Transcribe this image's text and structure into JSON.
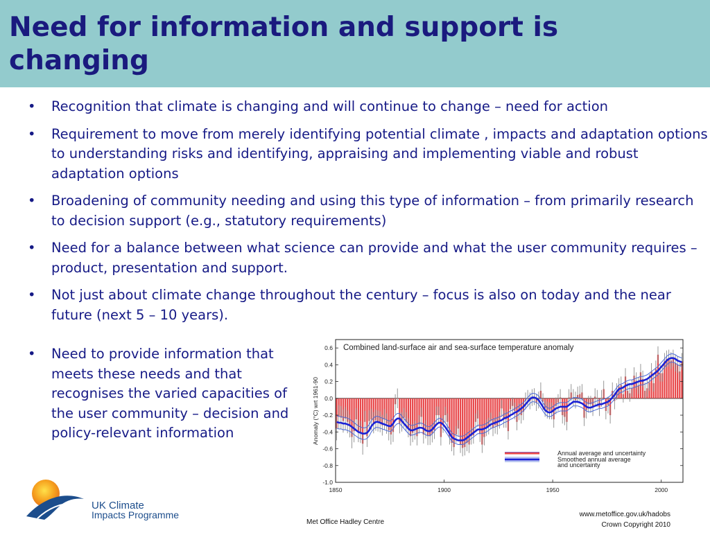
{
  "header": {
    "title": "Need for information and support is changing",
    "background": "#93cbcd",
    "title_color": "#1a1a7e"
  },
  "bullets": [
    "Recognition that climate is changing and will continue to change – need for action",
    "Requirement to move from merely identifying potential climate , impacts and adaptation options to understanding risks and identifying, appraising and implementing viable and robust adaptation options",
    "Broadening of community needing and using this type of information – from primarily research to decision support (e.g., statutory requirements)",
    "Need for a balance between what science can provide and what the user community requires – product, presentation and support.",
    "Not just about climate change throughout the century – focus is also on today and the near future (next 5 – 10 years)."
  ],
  "bullet_left": "Need to provide information that meets these needs and that recognises the varied capacities of the user community – decision and policy-relevant information",
  "bullet_char": "•",
  "logo": {
    "line1": "UK Climate",
    "line2": "Impacts Programme"
  },
  "footer": {
    "credit": "Met Office Hadley Centre",
    "url": "www.metoffice.gov.uk/hadobs",
    "copyright": "Crown Copyright 2010"
  },
  "chart_data": {
    "type": "bar",
    "title": "Combined land-surface air and sea-surface temperature anomaly",
    "ylabel": "Anomaly (°C) wrt 1961-90",
    "xlabel": "",
    "xlim": [
      1850,
      2010
    ],
    "ylim": [
      -1.0,
      0.7
    ],
    "xticks": [
      1850,
      1900,
      1950,
      2000
    ],
    "yticks": [
      -1.0,
      -0.8,
      -0.6,
      -0.4,
      -0.2,
      0.0,
      0.2,
      0.4,
      0.6
    ],
    "legend": [
      "Annual average and uncertainty",
      "Smoothed annual average and uncertainty"
    ],
    "legend_position": "lower-right",
    "colors": {
      "bar": "#e8474a",
      "smoothed": "#1a22d6",
      "uncertainty": "#8a8a8a",
      "smooth_band": "#4a6ad8"
    },
    "years": [
      1850,
      1851,
      1852,
      1853,
      1854,
      1855,
      1856,
      1857,
      1858,
      1859,
      1860,
      1861,
      1862,
      1863,
      1864,
      1865,
      1866,
      1867,
      1868,
      1869,
      1870,
      1871,
      1872,
      1873,
      1874,
      1875,
      1876,
      1877,
      1878,
      1879,
      1880,
      1881,
      1882,
      1883,
      1884,
      1885,
      1886,
      1887,
      1888,
      1889,
      1890,
      1891,
      1892,
      1893,
      1894,
      1895,
      1896,
      1897,
      1898,
      1899,
      1900,
      1901,
      1902,
      1903,
      1904,
      1905,
      1906,
      1907,
      1908,
      1909,
      1910,
      1911,
      1912,
      1913,
      1914,
      1915,
      1916,
      1917,
      1918,
      1919,
      1920,
      1921,
      1922,
      1923,
      1924,
      1925,
      1926,
      1927,
      1928,
      1929,
      1930,
      1931,
      1932,
      1933,
      1934,
      1935,
      1936,
      1937,
      1938,
      1939,
      1940,
      1941,
      1942,
      1943,
      1944,
      1945,
      1946,
      1947,
      1948,
      1949,
      1950,
      1951,
      1952,
      1953,
      1954,
      1955,
      1956,
      1957,
      1958,
      1959,
      1960,
      1961,
      1962,
      1963,
      1964,
      1965,
      1966,
      1967,
      1968,
      1969,
      1970,
      1971,
      1972,
      1973,
      1974,
      1975,
      1976,
      1977,
      1978,
      1979,
      1980,
      1981,
      1982,
      1983,
      1984,
      1985,
      1986,
      1987,
      1988,
      1989,
      1990,
      1991,
      1992,
      1993,
      1994,
      1995,
      1996,
      1997,
      1998,
      1999,
      2000,
      2001,
      2002,
      2003,
      2004,
      2005,
      2006,
      2007,
      2008,
      2009
    ],
    "annual": [
      -0.36,
      -0.22,
      -0.23,
      -0.27,
      -0.24,
      -0.28,
      -0.33,
      -0.46,
      -0.39,
      -0.25,
      -0.39,
      -0.4,
      -0.54,
      -0.28,
      -0.45,
      -0.27,
      -0.25,
      -0.29,
      -0.26,
      -0.27,
      -0.28,
      -0.32,
      -0.25,
      -0.3,
      -0.38,
      -0.43,
      -0.4,
      -0.07,
      0.0,
      -0.3,
      -0.28,
      -0.23,
      -0.28,
      -0.35,
      -0.45,
      -0.41,
      -0.38,
      -0.45,
      -0.31,
      -0.22,
      -0.43,
      -0.37,
      -0.45,
      -0.45,
      -0.42,
      -0.38,
      -0.2,
      -0.2,
      -0.46,
      -0.31,
      -0.2,
      -0.28,
      -0.45,
      -0.53,
      -0.58,
      -0.43,
      -0.36,
      -0.55,
      -0.59,
      -0.58,
      -0.53,
      -0.55,
      -0.45,
      -0.44,
      -0.28,
      -0.24,
      -0.42,
      -0.55,
      -0.46,
      -0.35,
      -0.33,
      -0.27,
      -0.35,
      -0.32,
      -0.33,
      -0.26,
      -0.12,
      -0.25,
      -0.25,
      -0.39,
      -0.13,
      -0.09,
      -0.15,
      -0.28,
      -0.16,
      -0.2,
      -0.16,
      -0.03,
      -0.0,
      -0.03,
      0.01,
      0.02,
      -0.05,
      -0.02,
      0.09,
      -0.04,
      -0.12,
      -0.14,
      -0.15,
      -0.15,
      -0.25,
      -0.09,
      -0.05,
      0.01,
      -0.2,
      -0.22,
      -0.28,
      0.01,
      0.07,
      0.01,
      -0.02,
      0.04,
      0.05,
      0.07,
      -0.23,
      -0.14,
      -0.07,
      -0.07,
      -0.11,
      0.02,
      -0.0,
      -0.11,
      0.0,
      0.11,
      -0.15,
      -0.08,
      -0.2,
      0.09,
      -0.03,
      0.08,
      0.14,
      0.16,
      0.05,
      0.26,
      0.09,
      0.06,
      0.12,
      0.27,
      0.21,
      0.15,
      0.31,
      0.23,
      0.09,
      0.12,
      0.19,
      0.32,
      0.18,
      0.35,
      0.52,
      0.3,
      0.3,
      0.44,
      0.47,
      0.48,
      0.45,
      0.48,
      0.42,
      0.4,
      0.32,
      0.44
    ],
    "smoothed": [
      -0.28,
      -0.29,
      -0.29,
      -0.3,
      -0.3,
      -0.31,
      -0.32,
      -0.34,
      -0.36,
      -0.38,
      -0.4,
      -0.41,
      -0.42,
      -0.42,
      -0.41,
      -0.38,
      -0.33,
      -0.3,
      -0.28,
      -0.28,
      -0.29,
      -0.3,
      -0.31,
      -0.32,
      -0.33,
      -0.33,
      -0.3,
      -0.26,
      -0.24,
      -0.24,
      -0.27,
      -0.3,
      -0.33,
      -0.36,
      -0.38,
      -0.38,
      -0.37,
      -0.36,
      -0.35,
      -0.35,
      -0.36,
      -0.38,
      -0.39,
      -0.39,
      -0.37,
      -0.34,
      -0.31,
      -0.29,
      -0.29,
      -0.31,
      -0.34,
      -0.38,
      -0.42,
      -0.46,
      -0.48,
      -0.49,
      -0.5,
      -0.5,
      -0.5,
      -0.49,
      -0.47,
      -0.45,
      -0.43,
      -0.41,
      -0.39,
      -0.37,
      -0.37,
      -0.37,
      -0.36,
      -0.35,
      -0.33,
      -0.31,
      -0.3,
      -0.29,
      -0.28,
      -0.27,
      -0.26,
      -0.24,
      -0.23,
      -0.22,
      -0.2,
      -0.19,
      -0.17,
      -0.16,
      -0.14,
      -0.12,
      -0.1,
      -0.07,
      -0.04,
      -0.01,
      0.01,
      0.01,
      0.0,
      -0.02,
      -0.06,
      -0.1,
      -0.14,
      -0.16,
      -0.17,
      -0.16,
      -0.14,
      -0.12,
      -0.11,
      -0.1,
      -0.1,
      -0.1,
      -0.1,
      -0.08,
      -0.06,
      -0.04,
      -0.04,
      -0.04,
      -0.05,
      -0.06,
      -0.08,
      -0.1,
      -0.11,
      -0.11,
      -0.1,
      -0.09,
      -0.08,
      -0.07,
      -0.07,
      -0.06,
      -0.05,
      -0.04,
      -0.02,
      0.01,
      0.04,
      0.08,
      0.11,
      0.12,
      0.13,
      0.15,
      0.16,
      0.17,
      0.17,
      0.18,
      0.19,
      0.2,
      0.21,
      0.21,
      0.22,
      0.23,
      0.25,
      0.27,
      0.29,
      0.31,
      0.33,
      0.36,
      0.39,
      0.42,
      0.45,
      0.47,
      0.48,
      0.48,
      0.47,
      0.45,
      0.44,
      0.43
    ]
  }
}
